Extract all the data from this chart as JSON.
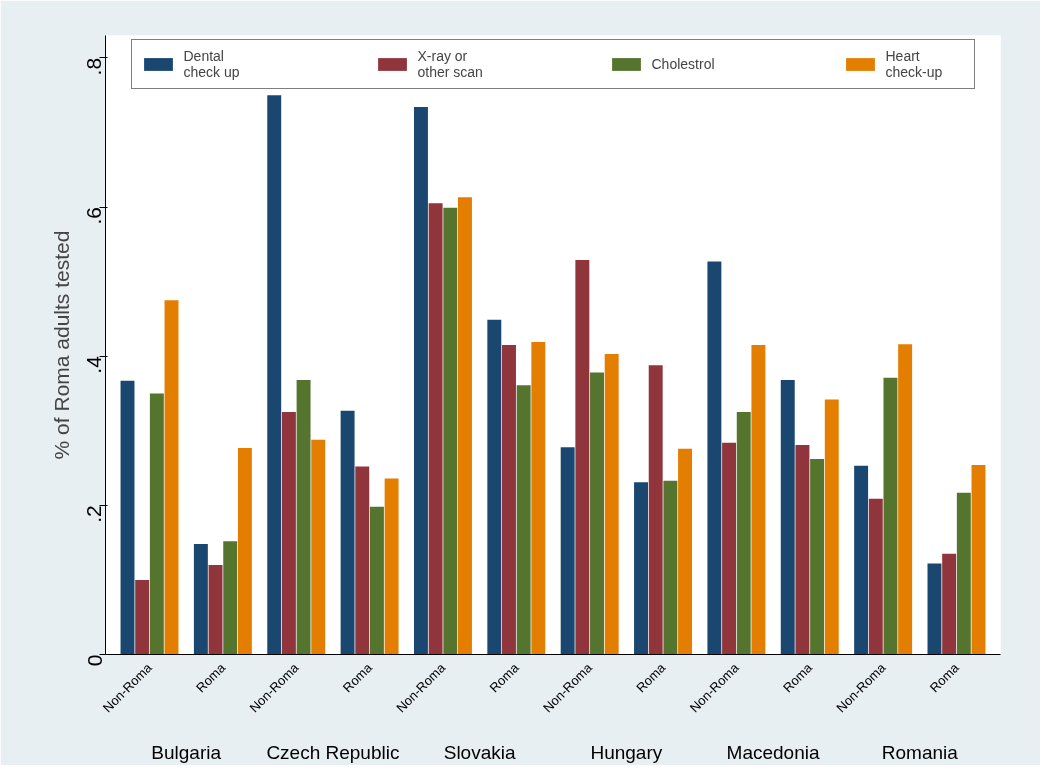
{
  "chart_data": {
    "type": "bar",
    "ylabel": "% of Roma adults tested",
    "categories": [
      "Non-Roma",
      "Roma",
      "Non-Roma",
      "Roma",
      "Non-Roma",
      "Roma",
      "Non-Roma",
      "Roma",
      "Non-Roma",
      "Roma",
      "Non-Roma",
      "Roma"
    ],
    "annotations": [
      "Bulgaria",
      "Czech Republic",
      "Slovakia",
      "Hungary",
      "Macedonia",
      "Romania"
    ],
    "series": [
      {
        "name": "Dental\ncheck up",
        "color": "#1a476f",
        "values": [
          0.367,
          0.148,
          0.75,
          0.327,
          0.734,
          0.449,
          0.278,
          0.231,
          0.527,
          0.368,
          0.253,
          0.122
        ]
      },
      {
        "name": "X-ray or\nother scan",
        "color": "#90353b",
        "values": [
          0.1,
          0.12,
          0.325,
          0.252,
          0.605,
          0.415,
          0.529,
          0.388,
          0.284,
          0.281,
          0.209,
          0.135
        ]
      },
      {
        "name": "Cholestrol",
        "color": "#55752f",
        "values": [
          0.35,
          0.152,
          0.368,
          0.198,
          0.599,
          0.361,
          0.378,
          0.233,
          0.325,
          0.262,
          0.371,
          0.217
        ]
      },
      {
        "name": "Heart\ncheck-up",
        "color": "#e37e00",
        "values": [
          0.475,
          0.277,
          0.288,
          0.236,
          0.613,
          0.419,
          0.403,
          0.276,
          0.415,
          0.342,
          0.416,
          0.254
        ]
      }
    ],
    "ylim": [
      0,
      0.83
    ],
    "yticks": [
      {
        "value": 0,
        "label": "0"
      },
      {
        "value": 0.2,
        "label": ".2"
      },
      {
        "value": 0.4,
        "label": ".4"
      },
      {
        "value": 0.6,
        "label": ".6"
      },
      {
        "value": 0.8,
        "label": ".8"
      }
    ],
    "grid": false,
    "legend": "top"
  }
}
